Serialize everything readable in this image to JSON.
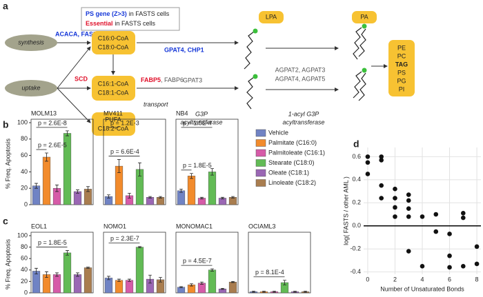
{
  "panel_labels": [
    "a",
    "b",
    "c",
    "d"
  ],
  "diagram": {
    "synthesis": "synthesis",
    "uptake": "uptake",
    "key": {
      "ps_gene": "PS gene (Z>3)",
      "suffix_1": "in FASTS cells",
      "essential": "Essential",
      "suffix_2": "in FASTS cells"
    },
    "acaca": "ACACA, FASN",
    "saturated": [
      "C16:0-CoA",
      "C18:0-CoA"
    ],
    "scd": "SCD",
    "mono": [
      "C16:1-CoA",
      "C18:1-CoA"
    ],
    "pufa": [
      "PUFA",
      "C18:2-CoA"
    ],
    "fabp5": "FABP5",
    "fabp6": ", FABP6",
    "transport": "transport",
    "gpat4": "GPAT4, CHP1",
    "gpat3": "GPAT3",
    "g3p": [
      "G3P",
      "acyltransferase"
    ],
    "lpa": "LPA",
    "pa": "PA",
    "agpat": [
      "AGPAT2, AGPAT3",
      "AGPAT4, AGPAT5"
    ],
    "acyl": [
      "1-acyl G3P",
      "acyltransferase"
    ],
    "products": [
      "PE",
      "PC",
      "TAG",
      "PS",
      "PG",
      "PI"
    ]
  },
  "treatments": [
    {
      "name": "Vehicle",
      "color": "#7083c4"
    },
    {
      "name": "Palmitate (C16:0)",
      "color": "#f28b2c"
    },
    {
      "name": "Palmitoleate (C16:1)",
      "color": "#d65ba8"
    },
    {
      "name": "Stearate (C18:0)",
      "color": "#62bb55"
    },
    {
      "name": "Oleate (C18:1)",
      "color": "#9a67b4"
    },
    {
      "name": "Linoleate (C18:2)",
      "color": "#a97d4f"
    }
  ],
  "chart_data": [
    {
      "type": "bar",
      "title": "MOLM13",
      "ylabel": "% Freq. Apoptosis",
      "ylim": [
        0,
        100
      ],
      "yticks": [
        0,
        20,
        40,
        60,
        80,
        100
      ],
      "values": [
        23,
        58,
        20,
        87,
        16,
        19
      ],
      "errors": [
        3,
        5,
        4,
        3,
        2,
        3
      ],
      "annotations": [
        "p = 2.6E-8",
        "p = 2.6E-5"
      ]
    },
    {
      "type": "bar",
      "title": "MV411",
      "ylim": [
        0,
        100
      ],
      "values": [
        10,
        47,
        11,
        43,
        9,
        9
      ],
      "errors": [
        2,
        8,
        3,
        8,
        1,
        1
      ],
      "annotations": [
        "p = 1.2E-3",
        "p = 6.6E-4"
      ]
    },
    {
      "type": "bar",
      "title": "NB4",
      "ylim": [
        0,
        100
      ],
      "values": [
        17,
        35,
        8,
        40,
        8,
        9
      ],
      "errors": [
        2,
        3,
        1,
        4,
        1,
        1
      ],
      "annotations": [
        "p = 1.5E-4",
        "p = 1.8E-5"
      ]
    },
    {
      "type": "bar",
      "title": "EOL1",
      "ylabel": "% Freq. Apoptosis",
      "ylim": [
        0,
        100
      ],
      "yticks": [
        0,
        20,
        40,
        60,
        80,
        100
      ],
      "values": [
        38,
        32,
        32,
        70,
        32,
        44
      ],
      "errors": [
        5,
        5,
        3,
        4,
        3,
        1
      ],
      "annotations": [
        "p = 1.8E-5"
      ]
    },
    {
      "type": "bar",
      "title": "NOMO1",
      "ylim": [
        0,
        100
      ],
      "values": [
        26,
        22,
        22,
        80,
        24,
        23
      ],
      "errors": [
        3,
        2,
        2,
        1,
        7,
        4
      ],
      "annotations": [
        "p = 2.3E-7"
      ]
    },
    {
      "type": "bar",
      "title": "MONOMAC1",
      "ylim": [
        0,
        100
      ],
      "values": [
        10,
        14,
        17,
        40,
        7,
        19
      ],
      "errors": [
        1,
        2,
        2,
        2,
        1,
        1
      ],
      "annotations": [
        "p = 4.5E-7"
      ]
    },
    {
      "type": "bar",
      "title": "OCIAML3",
      "ylim": [
        0,
        100
      ],
      "values": [
        2,
        2,
        2,
        18,
        2,
        2
      ],
      "errors": [
        1,
        1,
        1,
        4,
        1,
        1
      ],
      "annotations": [
        "p = 8.1E-4"
      ]
    },
    {
      "type": "scatter",
      "xlabel": "Number of Unsaturated Bonds",
      "ylabel": "log( FASTS / other AML )",
      "xlim": [
        -0.3,
        8.3
      ],
      "xticks": [
        0,
        2,
        4,
        6,
        8
      ],
      "ylim": [
        -0.42,
        0.68
      ],
      "yticks": [
        -0.4,
        -0.2,
        {
          "value": 0,
          "label": "0.0"
        },
        0.2,
        0.4,
        0.6
      ],
      "grid": true,
      "zero_line": true,
      "color": "#111111",
      "x": [
        0,
        0,
        0,
        1,
        1,
        1,
        1,
        2,
        2,
        2,
        2,
        3,
        3,
        3,
        3,
        3,
        4,
        4,
        5,
        5,
        6,
        6,
        6,
        7,
        7,
        7,
        8,
        8
      ],
      "values": [
        0.6,
        0.55,
        0.45,
        0.6,
        0.57,
        0.35,
        0.24,
        0.32,
        0.24,
        0.16,
        0.08,
        0.27,
        0.22,
        0.15,
        0.08,
        -0.22,
        0.08,
        -0.35,
        0.1,
        -0.05,
        -0.07,
        -0.26,
        -0.36,
        0.11,
        0.07,
        -0.35,
        -0.18,
        -0.33
      ]
    }
  ]
}
